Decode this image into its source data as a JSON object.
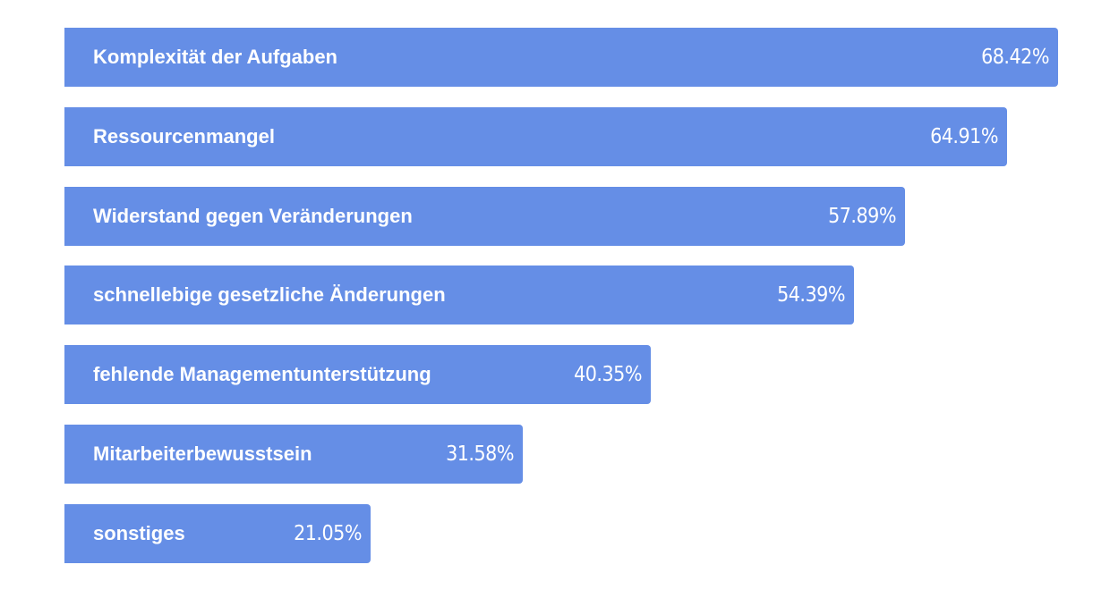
{
  "chart_data": {
    "type": "bar",
    "orientation": "horizontal",
    "categories": [
      "Komplexität der Aufgaben",
      "Ressourcenmangel",
      "Widerstand gegen Veränderungen",
      "schnellebige gesetzliche Änderungen",
      "fehlende Managementunterstützung",
      "Mitarbeiterbewusstsein",
      "sonstiges"
    ],
    "values": [
      68.42,
      64.91,
      57.89,
      54.39,
      40.35,
      31.58,
      21.05
    ],
    "value_labels": [
      "68.42%",
      "64.91%",
      "57.89%",
      "54.39%",
      "40.35%",
      "31.58%",
      "21.05%"
    ],
    "unit": "%",
    "xlim": [
      0,
      68.42
    ],
    "grid": false,
    "legend": "none",
    "bar_color": "#658ee6",
    "label_color": "#ffffff"
  }
}
